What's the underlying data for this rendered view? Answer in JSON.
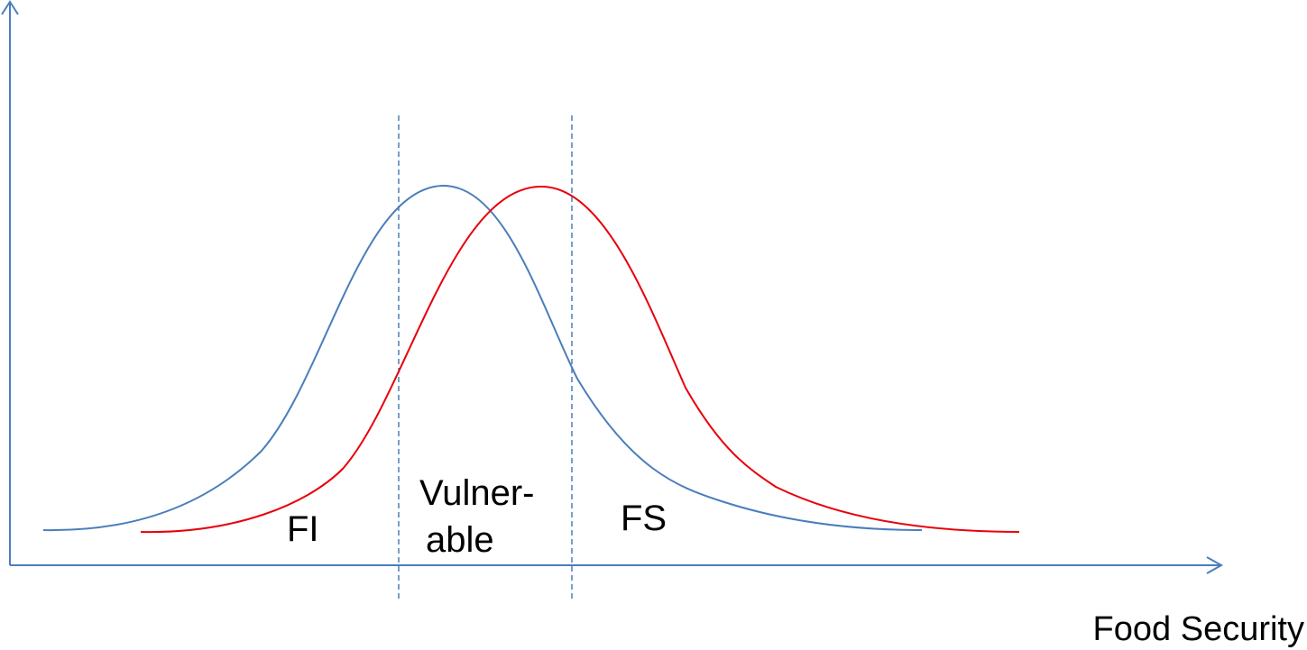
{
  "labels": {
    "fi": "FI",
    "vulnerable": [
      "Vulner-",
      "able"
    ],
    "fs": "FS"
  },
  "axis": {
    "x_label": "Food Security"
  }
}
